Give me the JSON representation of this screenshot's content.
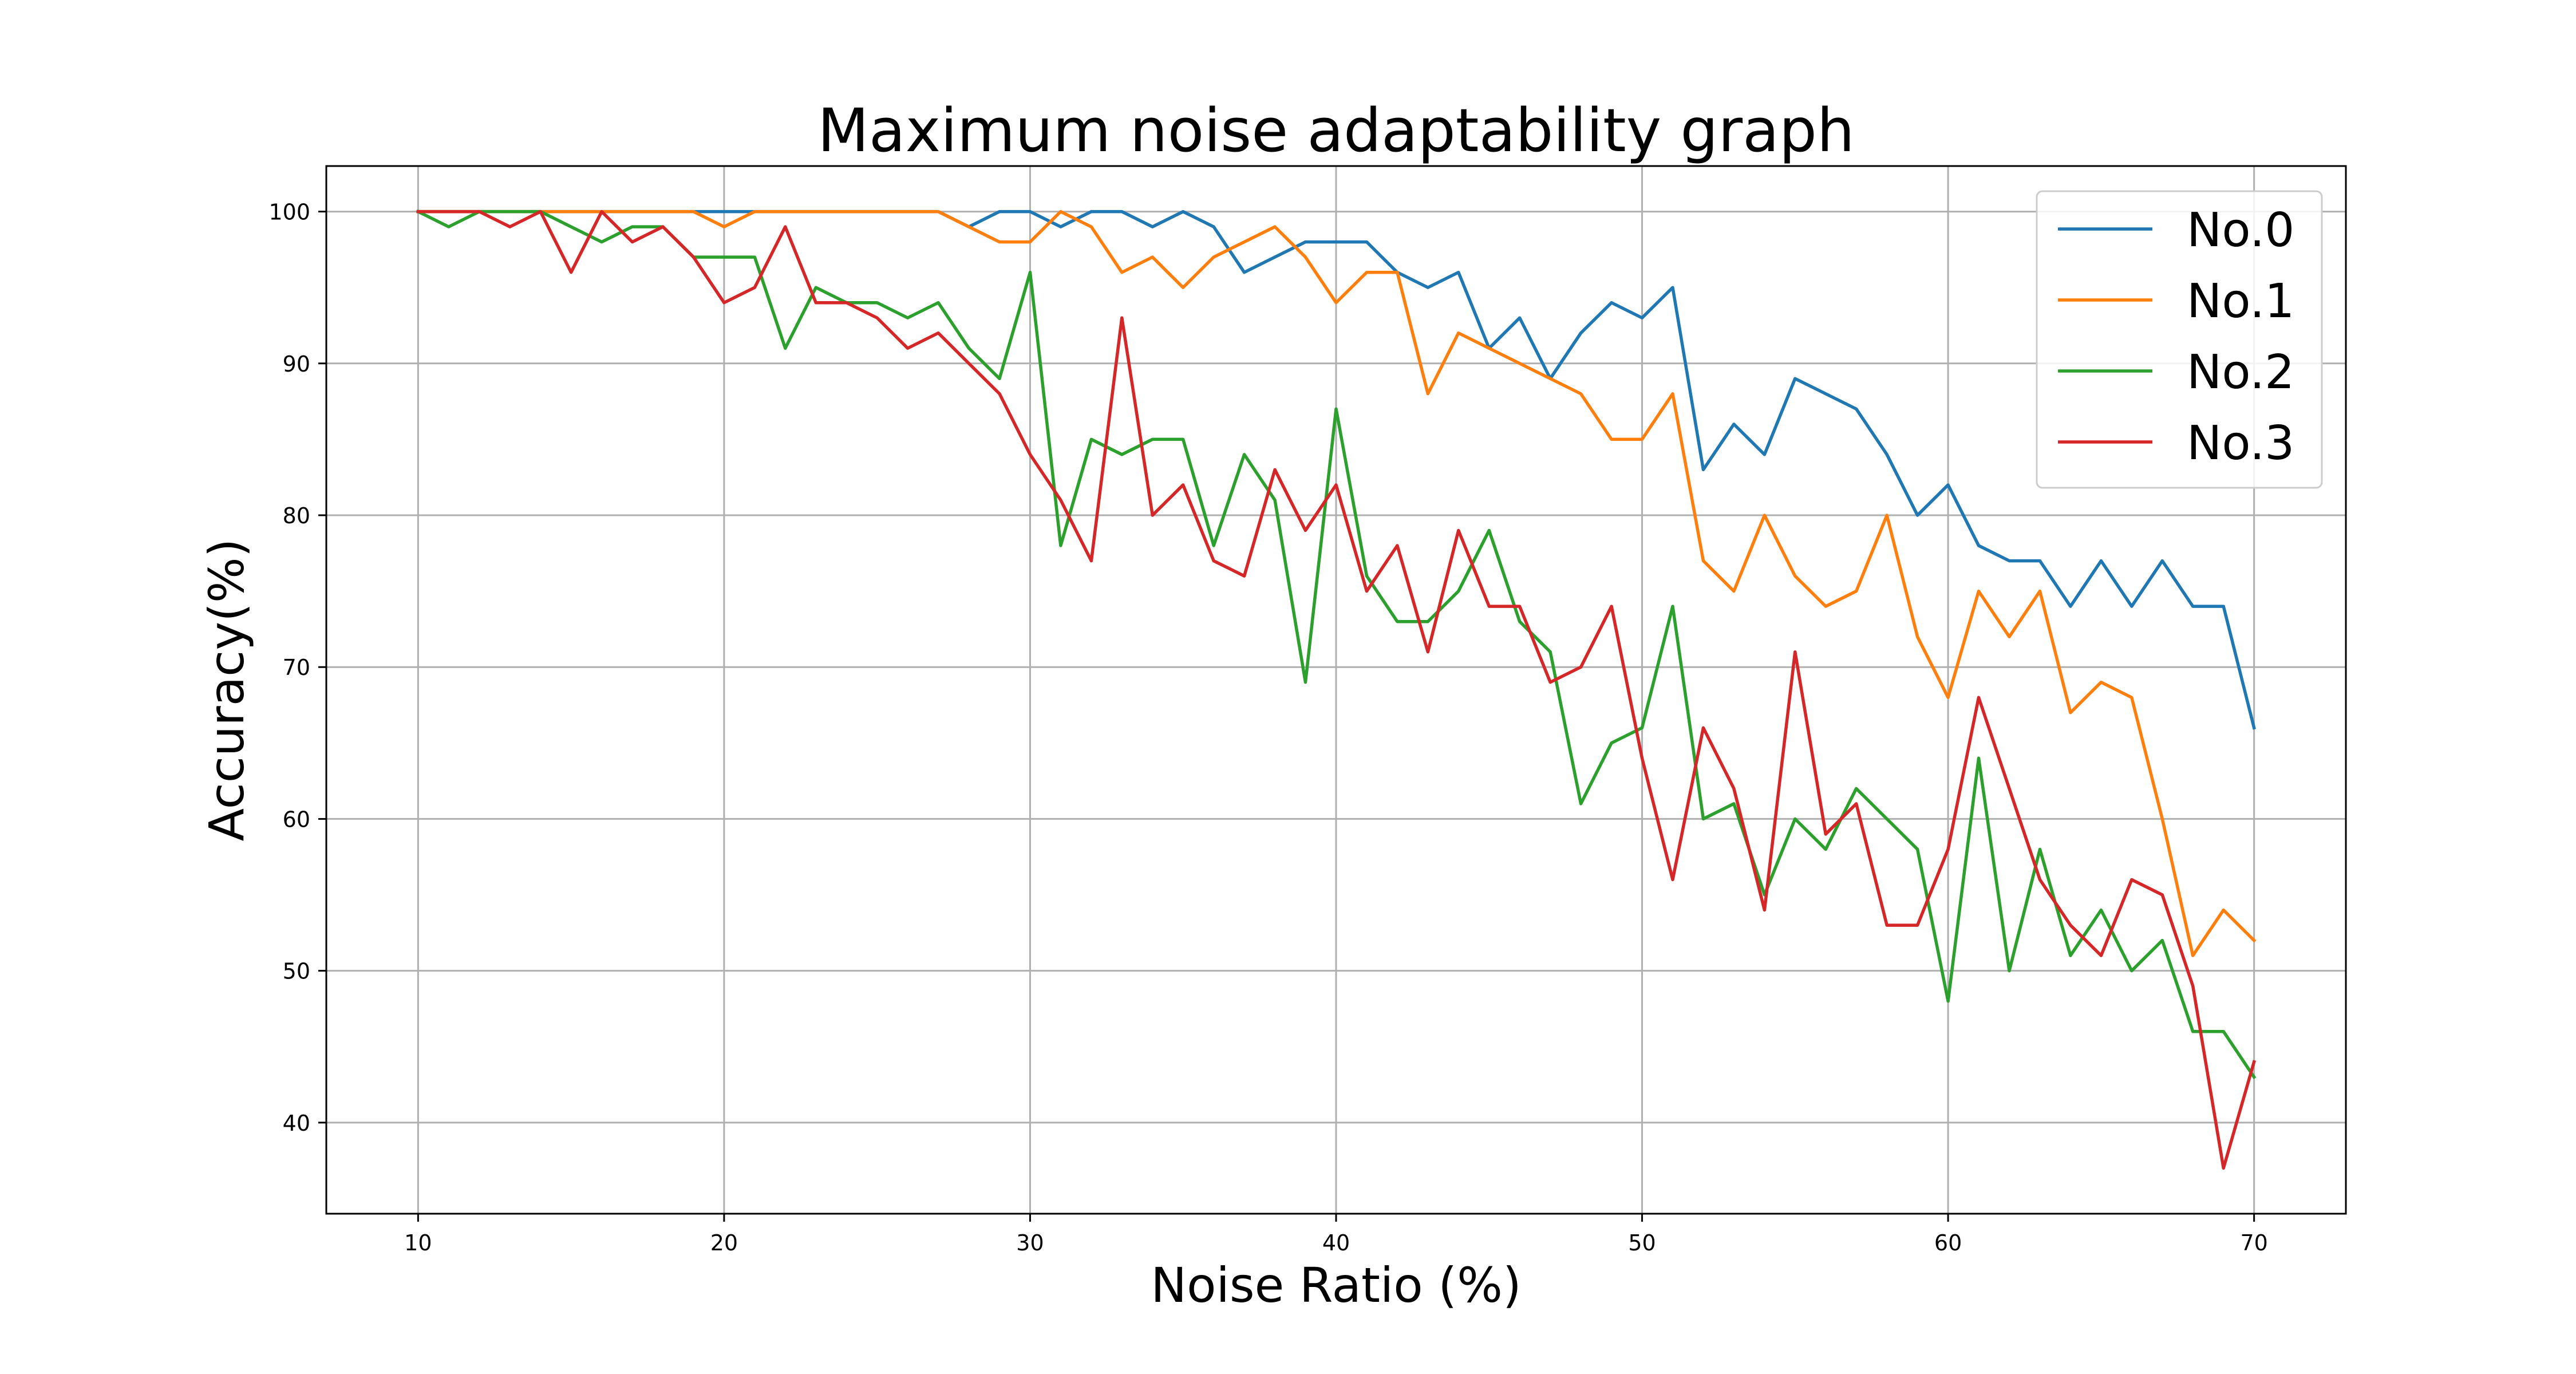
{
  "chart_data": {
    "type": "line",
    "title": "Maximum noise adaptability graph",
    "xlabel": "Noise Ratio (%)",
    "ylabel": "Accuracy(%)",
    "xlim": [
      7,
      73
    ],
    "ylim": [
      34,
      103
    ],
    "xticks": [
      "10",
      "20",
      "30",
      "40",
      "50",
      "60",
      "70"
    ],
    "yticks": [
      "40",
      "50",
      "60",
      "70",
      "80",
      "90",
      "100"
    ],
    "grid": true,
    "legend_position": "top-right",
    "x": [
      10,
      11,
      12,
      13,
      14,
      15,
      16,
      17,
      18,
      19,
      20,
      21,
      22,
      23,
      24,
      25,
      26,
      27,
      28,
      29,
      30,
      31,
      32,
      33,
      34,
      35,
      36,
      37,
      38,
      39,
      40,
      41,
      42,
      43,
      44,
      45,
      46,
      47,
      48,
      49,
      50,
      51,
      52,
      53,
      54,
      55,
      56,
      57,
      58,
      59,
      60,
      61,
      62,
      63,
      64,
      65,
      66,
      67,
      68,
      69,
      70
    ],
    "series": [
      {
        "name": "No.0",
        "color": "#1f77b4",
        "values": [
          100,
          100,
          100,
          100,
          100,
          100,
          100,
          100,
          100,
          100,
          100,
          100,
          100,
          100,
          100,
          100,
          100,
          100,
          99,
          100,
          100,
          99,
          100,
          100,
          99,
          100,
          99,
          96,
          97,
          98,
          98,
          98,
          96,
          95,
          96,
          91,
          93,
          89,
          92,
          94,
          93,
          95,
          83,
          86,
          84,
          89,
          88,
          87,
          84,
          80,
          82,
          78,
          77,
          77,
          74,
          77,
          74,
          77,
          74,
          74,
          66
        ]
      },
      {
        "name": "No.1",
        "color": "#ff7f0e",
        "values": [
          100,
          100,
          100,
          100,
          100,
          100,
          100,
          100,
          100,
          100,
          99,
          100,
          100,
          100,
          100,
          100,
          100,
          100,
          99,
          98,
          98,
          100,
          99,
          96,
          97,
          95,
          97,
          98,
          99,
          97,
          94,
          96,
          96,
          88,
          92,
          91,
          90,
          89,
          88,
          85,
          85,
          88,
          77,
          75,
          80,
          76,
          74,
          75,
          80,
          72,
          68,
          75,
          72,
          75,
          67,
          69,
          68,
          60,
          51,
          54,
          52
        ]
      },
      {
        "name": "No.2",
        "color": "#2ca02c",
        "values": [
          100,
          99,
          100,
          100,
          100,
          99,
          98,
          99,
          99,
          97,
          97,
          97,
          91,
          95,
          94,
          94,
          93,
          94,
          91,
          89,
          96,
          78,
          85,
          84,
          85,
          85,
          78,
          84,
          81,
          69,
          87,
          76,
          73,
          73,
          75,
          79,
          73,
          71,
          61,
          65,
          66,
          74,
          60,
          61,
          55,
          60,
          58,
          62,
          60,
          58,
          48,
          64,
          50,
          58,
          51,
          54,
          50,
          52,
          46,
          46,
          43
        ]
      },
      {
        "name": "No.3",
        "color": "#d62728",
        "values": [
          100,
          100,
          100,
          99,
          100,
          96,
          100,
          98,
          99,
          97,
          94,
          95,
          99,
          94,
          94,
          93,
          91,
          92,
          90,
          88,
          84,
          81,
          77,
          93,
          80,
          82,
          77,
          76,
          83,
          79,
          82,
          75,
          78,
          71,
          79,
          74,
          74,
          69,
          70,
          74,
          64,
          56,
          66,
          62,
          54,
          71,
          59,
          61,
          53,
          53,
          58,
          68,
          62,
          56,
          53,
          51,
          56,
          55,
          49,
          37,
          44
        ]
      }
    ]
  }
}
